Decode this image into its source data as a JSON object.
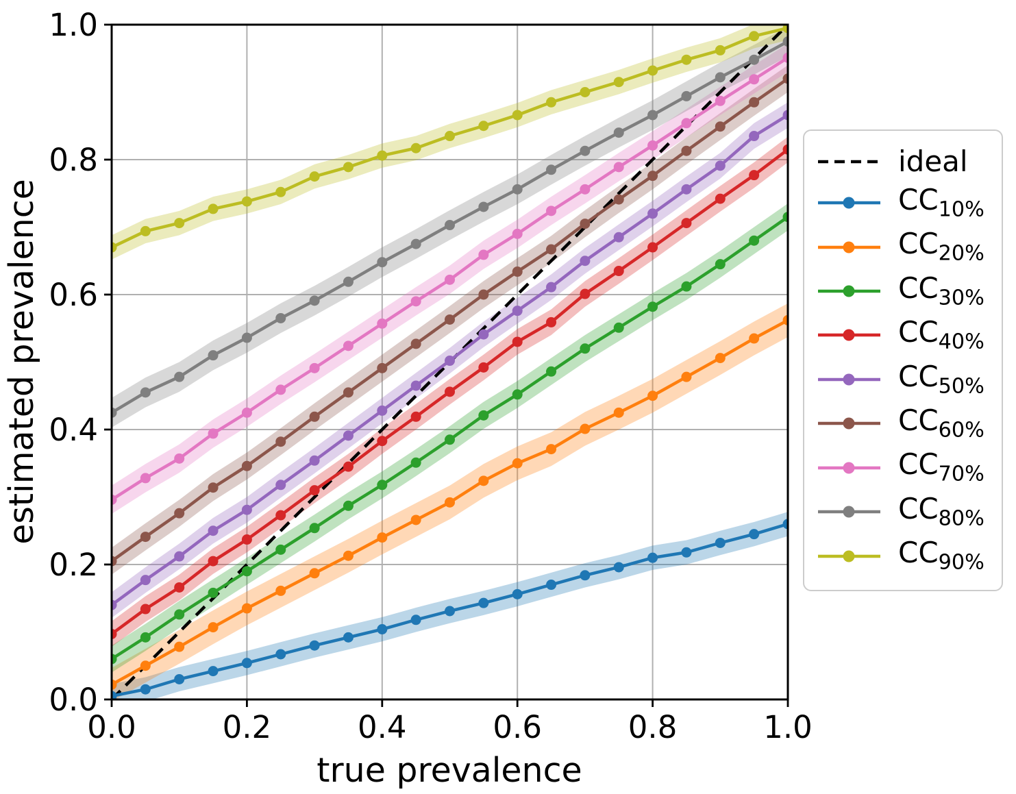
{
  "chart_data": {
    "type": "line",
    "title": "",
    "xlabel": "true prevalence",
    "ylabel": "estimated prevalence",
    "xlim": [
      0.0,
      1.0
    ],
    "ylim": [
      0.0,
      1.0
    ],
    "grid": true,
    "legend_position": "outside-right",
    "xtick_labels": [
      "0.0",
      "0.2",
      "0.4",
      "0.6",
      "0.8",
      "1.0"
    ],
    "ytick_labels": [
      "0.0",
      "0.2",
      "0.4",
      "0.6",
      "0.8",
      "1.0"
    ],
    "x": [
      0.0,
      0.05,
      0.1,
      0.15,
      0.2,
      0.25,
      0.3,
      0.35,
      0.4,
      0.45,
      0.5,
      0.55,
      0.6,
      0.65,
      0.7,
      0.75,
      0.8,
      0.85,
      0.9,
      0.95,
      1.0
    ],
    "ideal": {
      "label": "ideal",
      "color": "#000000",
      "style": "dashed",
      "x": [
        0.0,
        1.0
      ],
      "y": [
        0.0,
        1.0
      ]
    },
    "series": [
      {
        "label_base": "CC",
        "label_sub": "10%",
        "color": "#1f77b4",
        "band_halfwidth": 0.018,
        "values": [
          0.005,
          0.015,
          0.03,
          0.042,
          0.054,
          0.067,
          0.08,
          0.092,
          0.104,
          0.118,
          0.131,
          0.143,
          0.156,
          0.17,
          0.184,
          0.196,
          0.21,
          0.218,
          0.232,
          0.245,
          0.26
        ]
      },
      {
        "label_base": "CC",
        "label_sub": "20%",
        "color": "#ff7f0e",
        "band_halfwidth": 0.025,
        "values": [
          0.022,
          0.05,
          0.078,
          0.107,
          0.135,
          0.161,
          0.187,
          0.213,
          0.24,
          0.266,
          0.292,
          0.324,
          0.35,
          0.371,
          0.401,
          0.425,
          0.45,
          0.478,
          0.506,
          0.535,
          0.562
        ]
      },
      {
        "label_base": "CC",
        "label_sub": "30%",
        "color": "#2ca02c",
        "band_halfwidth": 0.02,
        "values": [
          0.06,
          0.092,
          0.126,
          0.158,
          0.19,
          0.222,
          0.254,
          0.287,
          0.318,
          0.351,
          0.385,
          0.421,
          0.452,
          0.486,
          0.52,
          0.551,
          0.582,
          0.612,
          0.645,
          0.68,
          0.715
        ]
      },
      {
        "label_base": "CC",
        "label_sub": "40%",
        "color": "#d62728",
        "band_halfwidth": 0.019,
        "values": [
          0.097,
          0.134,
          0.166,
          0.205,
          0.237,
          0.273,
          0.31,
          0.345,
          0.383,
          0.419,
          0.456,
          0.492,
          0.53,
          0.559,
          0.601,
          0.635,
          0.67,
          0.706,
          0.742,
          0.777,
          0.815
        ]
      },
      {
        "label_base": "CC",
        "label_sub": "50%",
        "color": "#9467bd",
        "band_halfwidth": 0.019,
        "values": [
          0.14,
          0.177,
          0.212,
          0.25,
          0.281,
          0.318,
          0.354,
          0.391,
          0.428,
          0.465,
          0.502,
          0.541,
          0.576,
          0.611,
          0.65,
          0.685,
          0.72,
          0.756,
          0.791,
          0.835,
          0.866
        ]
      },
      {
        "label_base": "CC",
        "label_sub": "60%",
        "color": "#8c564b",
        "band_halfwidth": 0.02,
        "values": [
          0.205,
          0.241,
          0.276,
          0.314,
          0.346,
          0.382,
          0.419,
          0.455,
          0.491,
          0.527,
          0.563,
          0.6,
          0.634,
          0.667,
          0.705,
          0.741,
          0.776,
          0.813,
          0.849,
          0.885,
          0.92
        ]
      },
      {
        "label_base": "CC",
        "label_sub": "70%",
        "color": "#e377c2",
        "band_halfwidth": 0.021,
        "values": [
          0.296,
          0.328,
          0.357,
          0.394,
          0.425,
          0.459,
          0.491,
          0.524,
          0.557,
          0.59,
          0.622,
          0.659,
          0.69,
          0.724,
          0.756,
          0.789,
          0.821,
          0.854,
          0.887,
          0.919,
          0.951
        ]
      },
      {
        "label_base": "CC",
        "label_sub": "80%",
        "color": "#7f7f7f",
        "band_halfwidth": 0.022,
        "values": [
          0.425,
          0.455,
          0.478,
          0.51,
          0.536,
          0.565,
          0.591,
          0.619,
          0.648,
          0.675,
          0.703,
          0.73,
          0.756,
          0.785,
          0.813,
          0.84,
          0.866,
          0.894,
          0.922,
          0.948,
          0.975
        ]
      },
      {
        "label_base": "CC",
        "label_sub": "90%",
        "color": "#bcbd22",
        "band_halfwidth": 0.018,
        "values": [
          0.67,
          0.694,
          0.706,
          0.727,
          0.738,
          0.752,
          0.775,
          0.789,
          0.806,
          0.817,
          0.835,
          0.85,
          0.866,
          0.885,
          0.9,
          0.915,
          0.932,
          0.948,
          0.962,
          0.983,
          0.995
        ]
      }
    ]
  }
}
